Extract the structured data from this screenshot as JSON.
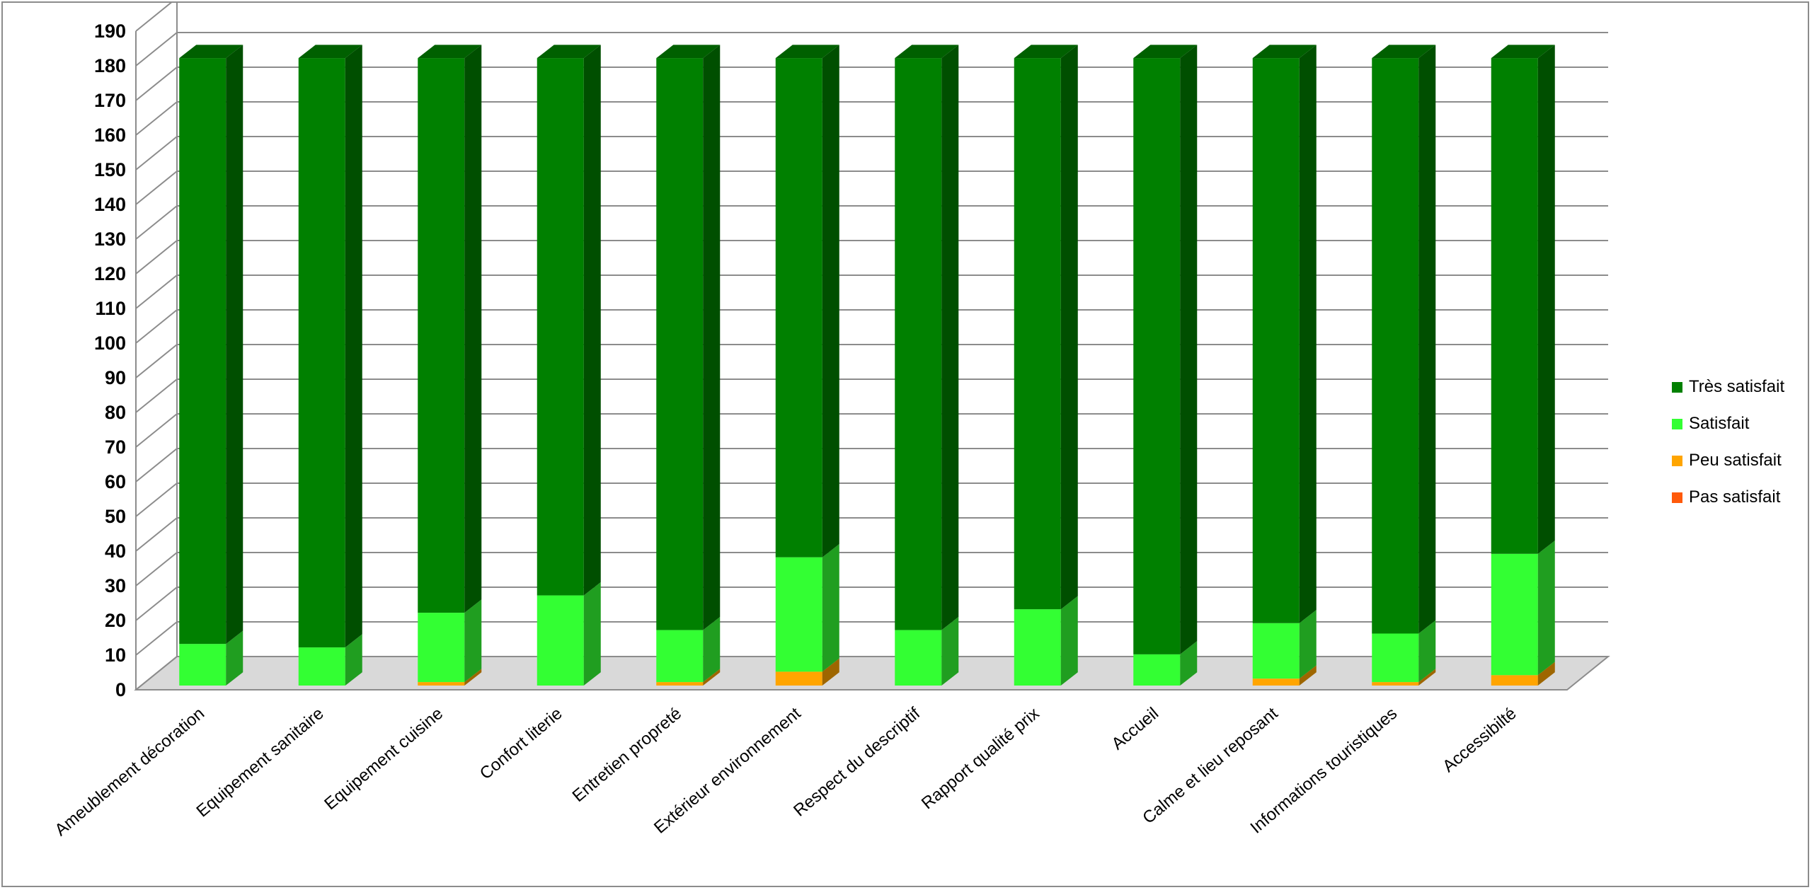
{
  "chart_data": {
    "type": "bar",
    "stacked": true,
    "three_d": true,
    "title": "",
    "xlabel": "",
    "ylabel": "",
    "ylim": [
      0,
      190
    ],
    "y_ticks": [
      0,
      10,
      20,
      30,
      40,
      50,
      60,
      70,
      80,
      90,
      100,
      110,
      120,
      130,
      140,
      150,
      160,
      170,
      180,
      190
    ],
    "grid": true,
    "legend_position": "right",
    "categories": [
      "Ameublement décoration",
      "Equipement sanitaire",
      "Equipement cuisine",
      "Confort literie",
      "Entretien propreté",
      "Extérieur environnement",
      "Respect du descriptif",
      "Rapport qualité prix",
      "Accueil",
      "Calme et lieu reposant",
      "Informations touristiques",
      "Accessibilté"
    ],
    "series": [
      {
        "name": "Pas satisfait",
        "color": "#ff5a0a",
        "values": [
          0,
          0,
          0,
          0,
          0,
          0,
          0,
          0,
          0,
          0,
          0,
          0
        ]
      },
      {
        "name": "Peu satisfait",
        "color": "#ffa500",
        "values": [
          0,
          0,
          1,
          0,
          1,
          4,
          0,
          0,
          0,
          2,
          1,
          3
        ]
      },
      {
        "name": "Satisfait",
        "color": "#33ff33",
        "values": [
          12,
          11,
          20,
          26,
          15,
          33,
          16,
          22,
          9,
          16,
          14,
          35
        ]
      },
      {
        "name": "Très satisfait",
        "color": "#008000",
        "values": [
          169,
          170,
          160,
          155,
          165,
          144,
          165,
          159,
          172,
          163,
          166,
          143
        ]
      }
    ]
  }
}
